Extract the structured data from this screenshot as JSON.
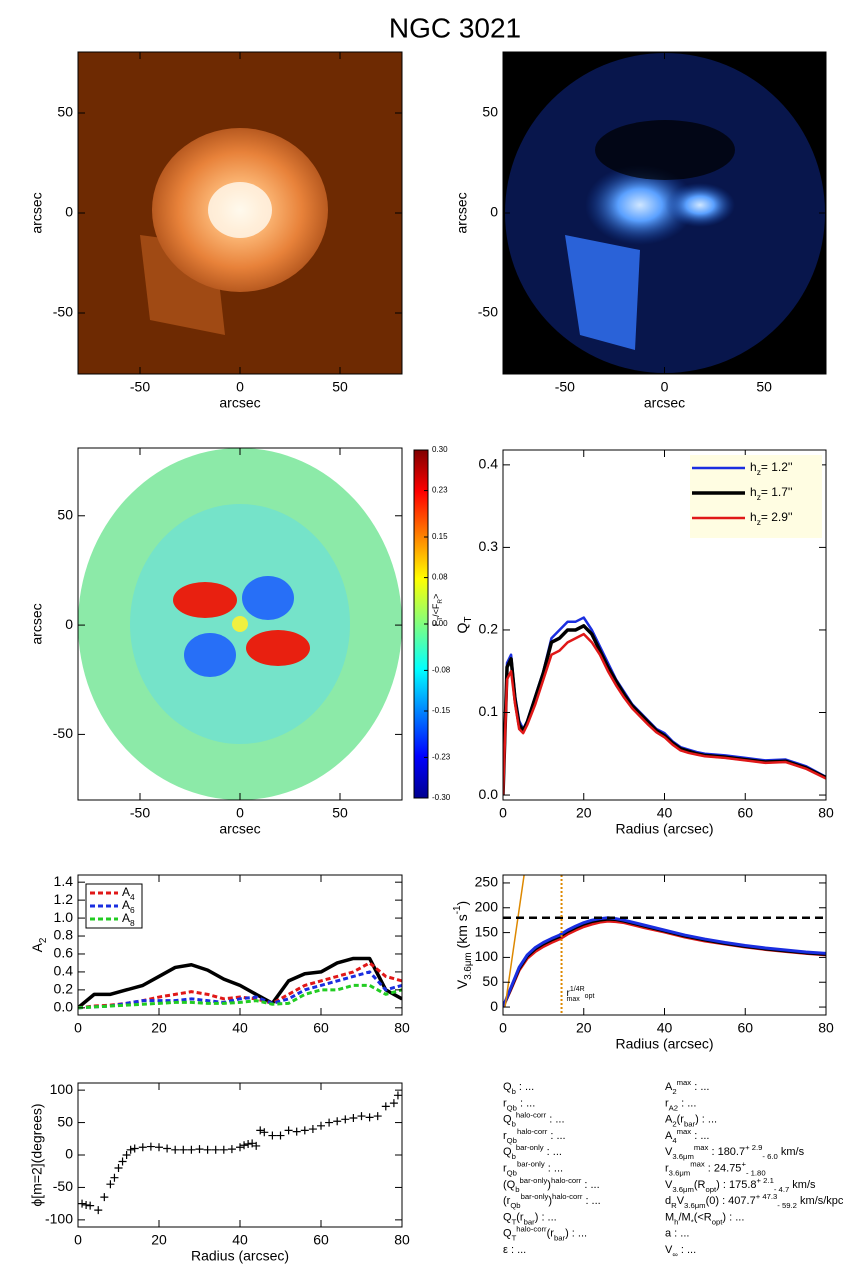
{
  "title": "NGC 3021",
  "chart_data": [
    {
      "type": "image",
      "palette": "orange",
      "xlim": [
        -81,
        81
      ],
      "ylim": [
        -80.5,
        80.5
      ],
      "xticks": [
        -50,
        0,
        50
      ],
      "yticks": [
        -50,
        0,
        50
      ],
      "xlabel": "arcsec",
      "ylabel": "arcsec"
    },
    {
      "type": "image",
      "palette": "blue",
      "xlim": [
        -81,
        81
      ],
      "ylim": [
        -80.5,
        80.5
      ],
      "xticks": [
        -50,
        0,
        50
      ],
      "yticks": [
        -50,
        0,
        50
      ],
      "xlabel": "arcsec",
      "ylabel": "arcsec"
    },
    {
      "type": "image",
      "palette": "jet",
      "xlim": [
        -81,
        81
      ],
      "ylim": [
        -80,
        81
      ],
      "xticks": [
        -50,
        0,
        50
      ],
      "yticks": [
        -50,
        0,
        50
      ],
      "xlabel": "arcsec",
      "ylabel": "arcsec",
      "colorbar": {
        "lim": [
          -0.3,
          0.3
        ],
        "ticks": [
          {
            "value": 0.3,
            "label": "0.30"
          },
          {
            "value": 0.23,
            "label": "0.23"
          },
          {
            "value": 0.15,
            "label": "0.15"
          },
          {
            "value": 0.08,
            "label": "0.08"
          },
          {
            "value": 0,
            "label": "0.00"
          },
          {
            "value": -0.08,
            "label": "-0.08"
          },
          {
            "value": -0.15,
            "label": "-0.15"
          },
          {
            "value": -0.23,
            "label": "-0.23"
          },
          {
            "value": -0.3,
            "label": "-0.30"
          }
        ],
        "label": [
          "F",
          {
            "sub": "T"
          },
          "/<F",
          {
            "sub": "R"
          },
          ">"
        ]
      }
    },
    {
      "type": "line",
      "xlim": [
        0,
        80
      ],
      "ylim": [
        -0.006,
        0.418
      ],
      "xticks": [
        0,
        20,
        40,
        60,
        80
      ],
      "yticks": [
        {
          "value": 0,
          "label": "0.0"
        },
        {
          "value": 0.1,
          "label": "0.1"
        },
        {
          "value": 0.2,
          "label": "0.2"
        },
        {
          "value": 0.3,
          "label": "0.3"
        },
        {
          "value": 0.4,
          "label": "0.4"
        }
      ],
      "xlabel": "Radius (arcsec)",
      "ylabel": [
        "Q",
        {
          "sub": "T"
        }
      ],
      "legend": "upper right",
      "x": [
        0,
        1,
        2,
        3,
        4,
        5,
        6,
        8,
        10,
        12,
        14,
        16,
        18,
        20,
        22,
        24,
        26,
        28,
        30,
        32,
        34,
        36,
        38,
        40,
        42,
        44,
        46,
        48,
        50,
        55,
        60,
        65,
        70,
        75,
        80
      ],
      "series": [
        {
          "name": [
            "h",
            {
              "sub": "z"
            },
            "=  1.2''"
          ],
          "color": "#1a2ee0",
          "width": 2.5,
          "values": [
            0,
            0.16,
            0.17,
            0.12,
            0.09,
            0.08,
            0.09,
            0.12,
            0.15,
            0.19,
            0.2,
            0.21,
            0.21,
            0.215,
            0.2,
            0.18,
            0.16,
            0.14,
            0.125,
            0.11,
            0.1,
            0.09,
            0.08,
            0.075,
            0.065,
            0.058,
            0.055,
            0.052,
            0.05,
            0.048,
            0.045,
            0.042,
            0.043,
            0.035,
            0.022
          ]
        },
        {
          "name": [
            "h",
            {
              "sub": "z"
            },
            "=  1.7''"
          ],
          "color": "#000000",
          "width": 3.5,
          "values": [
            0,
            0.155,
            0.165,
            0.115,
            0.085,
            0.078,
            0.088,
            0.118,
            0.148,
            0.185,
            0.19,
            0.2,
            0.2,
            0.205,
            0.195,
            0.175,
            0.155,
            0.138,
            0.122,
            0.108,
            0.098,
            0.088,
            0.078,
            0.072,
            0.063,
            0.056,
            0.053,
            0.05,
            0.048,
            0.046,
            0.043,
            0.04,
            0.041,
            0.033,
            0.021
          ]
        },
        {
          "name": [
            "h",
            {
              "sub": "z"
            },
            "=  2.9''"
          ],
          "color": "#e01818",
          "width": 2.5,
          "values": [
            0,
            0.14,
            0.15,
            0.11,
            0.08,
            0.075,
            0.085,
            0.11,
            0.14,
            0.17,
            0.175,
            0.185,
            0.19,
            0.195,
            0.185,
            0.17,
            0.15,
            0.133,
            0.118,
            0.105,
            0.095,
            0.085,
            0.076,
            0.07,
            0.061,
            0.054,
            0.051,
            0.049,
            0.047,
            0.045,
            0.042,
            0.039,
            0.04,
            0.032,
            0.02
          ]
        }
      ]
    },
    {
      "type": "line",
      "xlim": [
        0,
        80
      ],
      "ylim": [
        -0.08,
        1.48
      ],
      "xticks": [
        0,
        20,
        40,
        60,
        80
      ],
      "yticks": [
        {
          "value": 0,
          "label": "0.0"
        },
        {
          "value": 0.2,
          "label": "0.2"
        },
        {
          "value": 0.4,
          "label": "0.4"
        },
        {
          "value": 0.6,
          "label": "0.6"
        },
        {
          "value": 0.8,
          "label": "0.8"
        },
        {
          "value": 1,
          "label": "1.0"
        },
        {
          "value": 1.2,
          "label": "1.2"
        },
        {
          "value": 1.4,
          "label": "1.4"
        }
      ],
      "ylabel": [
        "A",
        {
          "sub": "2"
        }
      ],
      "legend": "upper left",
      "x": [
        0,
        4,
        8,
        12,
        16,
        20,
        24,
        28,
        32,
        36,
        40,
        44,
        48,
        52,
        56,
        60,
        64,
        68,
        72,
        76,
        80
      ],
      "series": [
        {
          "color": "#000000",
          "width": 3.5,
          "values": [
            0,
            0.15,
            0.15,
            0.2,
            0.25,
            0.35,
            0.45,
            0.48,
            0.42,
            0.32,
            0.25,
            0.15,
            0.05,
            0.3,
            0.38,
            0.4,
            0.5,
            0.55,
            0.55,
            0.2,
            0.1
          ]
        },
        {
          "name": [
            "A",
            {
              "sub": "4"
            }
          ],
          "color": "#e01818",
          "width": 3,
          "dash": "5,3",
          "values": [
            0,
            0.02,
            0.03,
            0.05,
            0.08,
            0.12,
            0.15,
            0.18,
            0.15,
            0.1,
            0.12,
            0.1,
            0.05,
            0.15,
            0.25,
            0.3,
            0.35,
            0.4,
            0.5,
            0.35,
            0.3
          ]
        },
        {
          "name": [
            "A",
            {
              "sub": "6"
            }
          ],
          "color": "#1a2ee0",
          "width": 3,
          "dash": "5,3",
          "values": [
            0,
            0.01,
            0.02,
            0.05,
            0.08,
            0.08,
            0.08,
            0.1,
            0.08,
            0.06,
            0.1,
            0.12,
            0.05,
            0.1,
            0.2,
            0.25,
            0.3,
            0.35,
            0.4,
            0.2,
            0.25
          ]
        },
        {
          "name": [
            "A",
            {
              "sub": "8"
            }
          ],
          "color": "#22cc22",
          "width": 3,
          "dash": "5,3",
          "values": [
            0,
            0.01,
            0.02,
            0.03,
            0.04,
            0.05,
            0.06,
            0.06,
            0.05,
            0.05,
            0.06,
            0.08,
            0.04,
            0.05,
            0.15,
            0.2,
            0.2,
            0.25,
            0.25,
            0.15,
            0.2
          ]
        }
      ]
    },
    {
      "type": "line",
      "xlim": [
        0,
        80
      ],
      "ylim": [
        -16,
        266
      ],
      "xticks": [
        0,
        20,
        40,
        60,
        80
      ],
      "yticks": [
        0,
        50,
        100,
        150,
        200,
        250
      ],
      "xlabel": "Radius (arcsec)",
      "ylabel": [
        "V",
        {
          "sub": "3.6μm"
        },
        " (km s",
        {
          "sup": "-1"
        },
        ")"
      ],
      "x": [
        0,
        2,
        4,
        6,
        8,
        10,
        12,
        14,
        16,
        18,
        20,
        22,
        24,
        26,
        28,
        30,
        35,
        40,
        45,
        50,
        55,
        60,
        65,
        70,
        75,
        80
      ],
      "series": [
        {
          "color": "#e01818",
          "width": 3,
          "values": [
            0,
            36,
            74,
            98,
            112,
            122,
            130,
            137,
            147,
            155,
            162,
            167,
            171,
            173,
            172,
            170,
            160,
            151,
            141,
            133,
            127,
            121,
            116,
            112,
            108,
            105
          ]
        },
        {
          "color": "#000000",
          "width": 3,
          "values": [
            0,
            38,
            77,
            102,
            117,
            127,
            135,
            142,
            152,
            160,
            167,
            172,
            175,
            177,
            176,
            173,
            163,
            153,
            143,
            135,
            128,
            122,
            117,
            113,
            109,
            106
          ]
        },
        {
          "color": "#1a2ee0",
          "width": 3,
          "values": [
            0,
            40,
            80,
            105,
            120,
            130,
            138,
            145,
            155,
            163,
            170,
            175,
            178,
            180,
            178,
            175,
            165,
            155,
            145,
            137,
            130,
            124,
            119,
            115,
            111,
            108
          ]
        },
        {
          "color": "#dd8800",
          "width": 1.5,
          "x": [
            0.5,
            5.3
          ],
          "values": [
            0,
            270
          ]
        }
      ],
      "hlines": [
        {
          "value": 180,
          "color": "#000000"
        }
      ],
      "vlines": [
        {
          "value": 14.5,
          "color": "#dd8800",
          "label": [
            "r",
            {
              "sup": "1/4R"
            },
            {
              "sub": "opt"
            }
          ],
          "sublabel": "max"
        }
      ]
    },
    {
      "type": "scatter",
      "xlim": [
        0,
        80
      ],
      "ylim": [
        -111,
        111
      ],
      "xticks": [
        0,
        20,
        40,
        60,
        80
      ],
      "yticks": [
        -100,
        -50,
        0,
        50,
        100
      ],
      "xlabel": "Radius (arcsec)",
      "ylabel": "ϕ[m=2](degrees)",
      "color": "#000000",
      "x": [
        1,
        2,
        3,
        5,
        6.5,
        8,
        9,
        10,
        11,
        12,
        13,
        14,
        16,
        18,
        20,
        22,
        24,
        26,
        28,
        30,
        32,
        34,
        36,
        38,
        40,
        41,
        42,
        43,
        44,
        45,
        46,
        48,
        50,
        52,
        54,
        56,
        58,
        60,
        62,
        64,
        66,
        68,
        70,
        72,
        74,
        76,
        78,
        79
      ],
      "values": [
        -75,
        -77,
        -78,
        -85,
        -65,
        -45,
        -35,
        -20,
        -10,
        0,
        8,
        10,
        12,
        13,
        12,
        10,
        8,
        8,
        8,
        9,
        8,
        8,
        8,
        9,
        12,
        15,
        17,
        18,
        14,
        38,
        35,
        30,
        30,
        38,
        36,
        38,
        40,
        45,
        50,
        52,
        55,
        57,
        60,
        58,
        60,
        75,
        80,
        92
      ]
    }
  ],
  "parameters": {
    "left": [
      [
        "Q",
        {
          "sub": "b"
        },
        " : ..."
      ],
      [
        "r",
        {
          "sub": "Qb"
        },
        " : ..."
      ],
      [
        "Q",
        {
          "sub": "b"
        },
        {
          "sup": "halo-corr"
        },
        " : ..."
      ],
      [
        "r",
        {
          "sub": "Qb"
        },
        {
          "sup": "halo-corr"
        },
        " : ..."
      ],
      [
        "Q",
        {
          "sub": "b"
        },
        {
          "sup": "bar-only"
        },
        " : ..."
      ],
      [
        "r",
        {
          "sub": "Qb"
        },
        {
          "sup": "bar-only"
        },
        " : ..."
      ],
      [
        "(Q",
        {
          "sub": "b"
        },
        {
          "sup": "bar-only"
        },
        ")",
        {
          "sup": "halo-corr"
        },
        " : ..."
      ],
      [
        "(r",
        {
          "sub": "Qb"
        },
        {
          "sup": "bar-only"
        },
        ")",
        {
          "sup": "halo-corr"
        },
        " : ..."
      ],
      [
        "Q",
        {
          "sub": "T"
        },
        "(r",
        {
          "sub": "bar"
        },
        ") : ..."
      ],
      [
        "Q",
        {
          "sub": "T"
        },
        {
          "sup": "halo-corr"
        },
        "(r",
        {
          "sub": "bar"
        },
        ") : ..."
      ],
      [
        "ε : ..."
      ]
    ],
    "right": [
      [
        "A",
        {
          "sub": "2"
        },
        {
          "sup": "max"
        },
        " : ..."
      ],
      [
        "r",
        {
          "sub": "A2"
        },
        " : ..."
      ],
      [
        "A",
        {
          "sub": "2"
        },
        "(r",
        {
          "sub": "bar"
        },
        ") : ..."
      ],
      [
        "A",
        {
          "sub": "4"
        },
        {
          "sup": "max"
        },
        " : ..."
      ],
      [
        "V",
        {
          "sub": "3.6μm"
        },
        {
          "sup": "max"
        },
        " :  180.7",
        {
          "sup": "+ 2.9"
        },
        {
          "sub": "- 6.0"
        },
        " km/s"
      ],
      [
        "r",
        {
          "sub": "3.6μm"
        },
        {
          "sup": "max"
        },
        " :  24.75",
        {
          "sup": "+"
        },
        {
          "sub": "- 1.80"
        }
      ],
      [
        "V",
        {
          "sub": "3.6μm"
        },
        "(R",
        {
          "sub": "opt"
        },
        ") :  175.8",
        {
          "sup": "+ 2.1"
        },
        {
          "sub": "- 4.7"
        },
        " km/s"
      ],
      [
        "d",
        {
          "sub": "R"
        },
        "V",
        {
          "sub": "3.6μm"
        },
        "(0) :  407.7",
        {
          "sup": "+ 47.3"
        },
        {
          "sub": "- 59.2"
        },
        " km/s/kpc"
      ],
      [
        "M",
        {
          "sub": "h"
        },
        "/M",
        {
          "sub": "*"
        },
        "(<R",
        {
          "sub": "opt"
        },
        ") : ..."
      ],
      [
        "a : ..."
      ],
      [
        "V",
        {
          "sub": "∞"
        },
        " : ..."
      ]
    ]
  }
}
